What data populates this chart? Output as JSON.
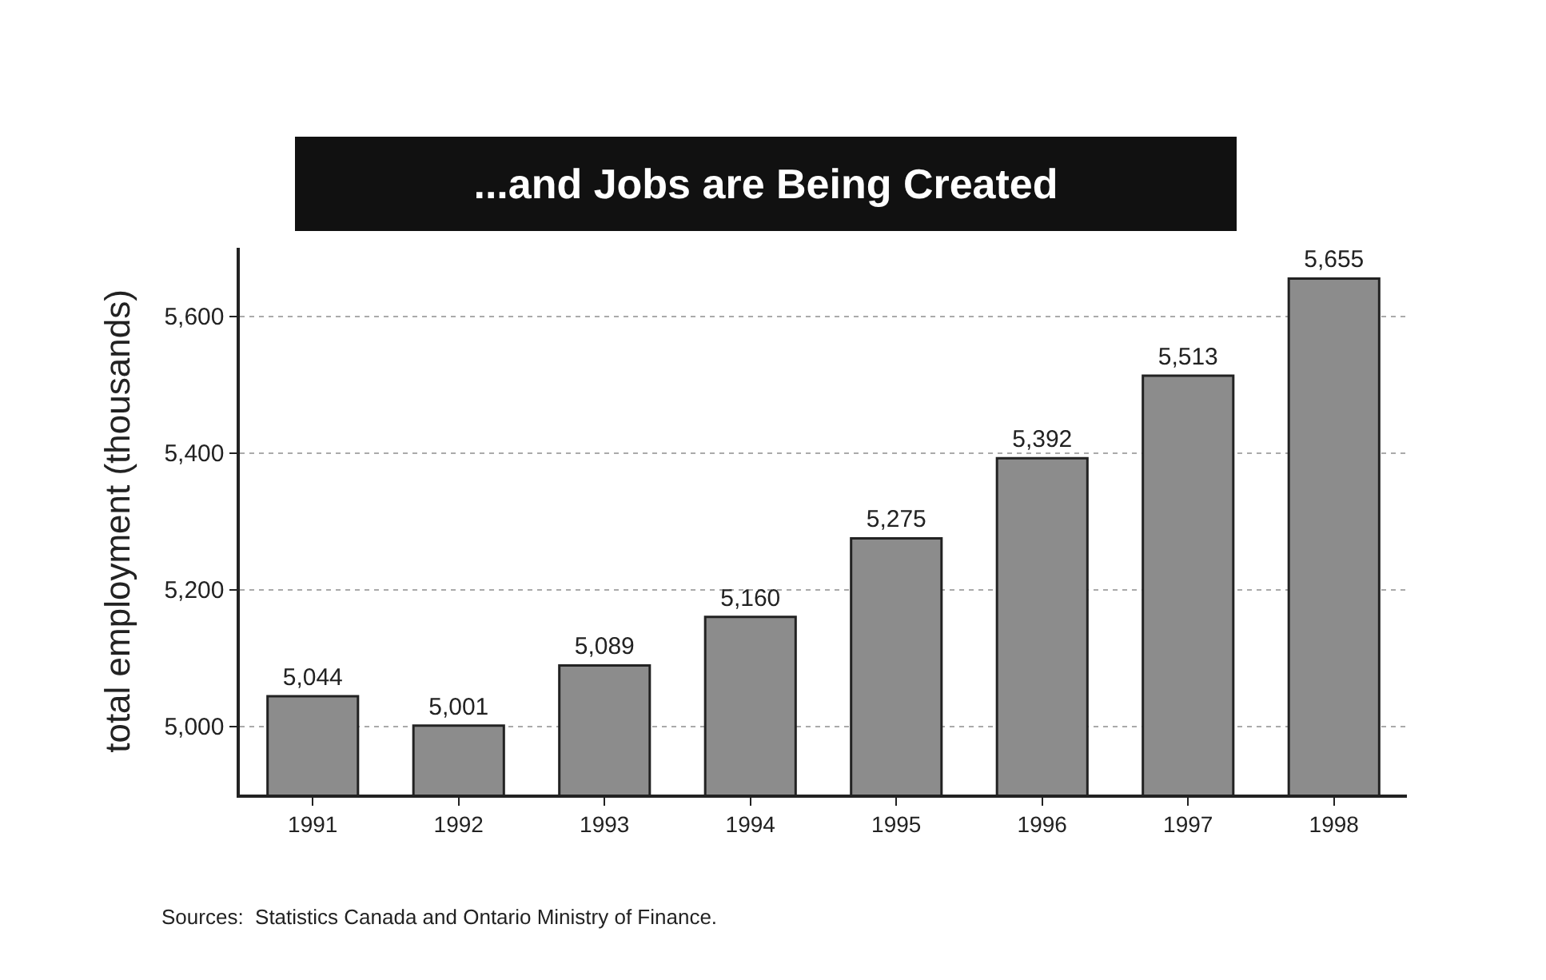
{
  "chart_data": {
    "type": "bar",
    "title": "...and Jobs are Being Created",
    "ylabel": "total employment (thousands)",
    "categories": [
      "1991",
      "1992",
      "1993",
      "1994",
      "1995",
      "1996",
      "1997",
      "1998"
    ],
    "values": [
      5044,
      5001,
      5089,
      5160,
      5275,
      5392,
      5513,
      5655
    ],
    "color": "#8c8c8c",
    "value_labels": [
      "5,044",
      "5,001",
      "5,089",
      "5,160",
      "5,275",
      "5,392",
      "5,513",
      "5,655"
    ],
    "ylim": [
      4900,
      5700
    ],
    "yticks": [
      {
        "value": 5000,
        "label": "5,000"
      },
      {
        "value": 5200,
        "label": "5,200"
      },
      {
        "value": 5400,
        "label": "5,400"
      },
      {
        "value": 5600,
        "label": "5,600"
      }
    ],
    "grid": "y",
    "annotations": [
      "Sources:  Statistics Canada and Ontario Ministry of Finance."
    ]
  }
}
